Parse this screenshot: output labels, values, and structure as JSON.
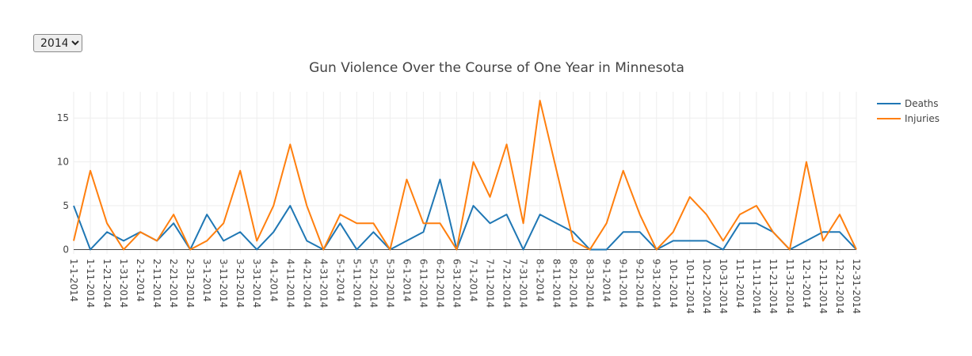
{
  "controls": {
    "year_options": [
      "2014"
    ],
    "year_selected": "2014"
  },
  "chart_data": {
    "type": "line",
    "title": "Gun Violence Over the Course of One Year in Minnesota",
    "xlabel": "",
    "ylabel": "",
    "ylim": [
      -0.5,
      18
    ],
    "yticks": [
      0,
      5,
      10,
      15
    ],
    "grid": true,
    "legend": "top-right",
    "categories": [
      "1-1-2014",
      "1-11-2014",
      "1-21-2014",
      "1-31-2014",
      "2-1-2014",
      "2-11-2014",
      "2-21-2014",
      "2-31-2014",
      "3-1-2014",
      "3-11-2014",
      "3-21-2014",
      "3-31-2014",
      "4-1-2014",
      "4-11-2014",
      "4-21-2014",
      "4-31-2014",
      "5-1-2014",
      "5-11-2014",
      "5-21-2014",
      "5-31-2014",
      "6-1-2014",
      "6-11-2014",
      "6-21-2014",
      "6-31-2014",
      "7-1-2014",
      "7-11-2014",
      "7-21-2014",
      "7-31-2014",
      "8-1-2014",
      "8-11-2014",
      "8-21-2014",
      "8-31-2014",
      "9-1-2014",
      "9-11-2014",
      "9-21-2014",
      "9-31-2014",
      "10-1-2014",
      "10-11-2014",
      "10-21-2014",
      "10-31-2014",
      "11-1-2014",
      "11-11-2014",
      "11-21-2014",
      "11-31-2014",
      "12-1-2014",
      "12-11-2014",
      "12-21-2014",
      "12-31-2014"
    ],
    "series": [
      {
        "name": "Deaths",
        "color": "#1f77b4",
        "values": [
          5,
          0,
          2,
          1,
          2,
          1,
          3,
          0,
          4,
          1,
          2,
          0,
          2,
          5,
          1,
          0,
          3,
          0,
          2,
          0,
          1,
          2,
          8,
          0,
          5,
          3,
          4,
          0,
          4,
          3,
          2,
          0,
          0,
          2,
          2,
          0,
          1,
          1,
          1,
          0,
          3,
          3,
          2,
          0,
          1,
          2,
          2,
          0
        ]
      },
      {
        "name": "Injuries",
        "color": "#ff7f0e",
        "values": [
          1,
          9,
          3,
          0,
          2,
          1,
          4,
          0,
          1,
          3,
          9,
          1,
          5,
          12,
          5,
          0,
          4,
          3,
          3,
          0,
          8,
          3,
          3,
          0,
          10,
          6,
          12,
          3,
          17,
          9,
          1,
          0,
          3,
          9,
          4,
          0,
          2,
          6,
          4,
          1,
          4,
          5,
          2,
          0,
          10,
          1,
          4,
          0
        ]
      }
    ]
  }
}
